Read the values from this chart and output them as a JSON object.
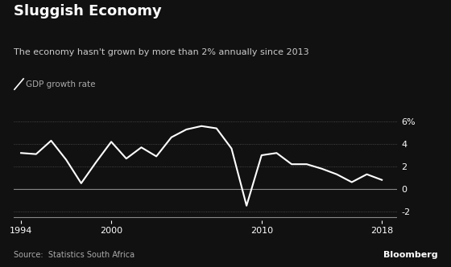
{
  "title": "Sluggish Economy",
  "subtitle": "The economy hasn't grown by more than 2% annually since 2013",
  "legend_label": "GDP growth rate",
  "source": "Source:  Statistics South Africa",
  "branding": "Bloomberg",
  "background_color": "#111111",
  "text_color": "#ffffff",
  "line_color": "#ffffff",
  "grid_color": "#555555",
  "zero_line_color": "#888888",
  "bottom_line_color": "#888888",
  "years": [
    1994,
    1995,
    1996,
    1997,
    1998,
    1999,
    2000,
    2001,
    2002,
    2003,
    2004,
    2005,
    2006,
    2007,
    2008,
    2009,
    2010,
    2011,
    2012,
    2013,
    2014,
    2015,
    2016,
    2017,
    2018
  ],
  "values": [
    3.2,
    3.1,
    4.3,
    2.6,
    0.5,
    2.4,
    4.2,
    2.7,
    3.7,
    2.9,
    4.6,
    5.3,
    5.6,
    5.4,
    3.6,
    -1.5,
    3.0,
    3.2,
    2.2,
    2.2,
    1.8,
    1.3,
    0.6,
    1.3,
    0.8
  ],
  "xlim": [
    1993.5,
    2019.0
  ],
  "ylim": [
    -2.8,
    7.2
  ],
  "yticks": [
    -2,
    0,
    2,
    4,
    6
  ],
  "xticks": [
    1994,
    2000,
    2010,
    2018
  ],
  "ytick_labels": [
    "-2",
    "0",
    "2",
    "4",
    "6%"
  ],
  "title_fontsize": 13,
  "subtitle_fontsize": 8,
  "legend_fontsize": 7.5,
  "tick_fontsize": 8,
  "source_fontsize": 7,
  "branding_fontsize": 8
}
